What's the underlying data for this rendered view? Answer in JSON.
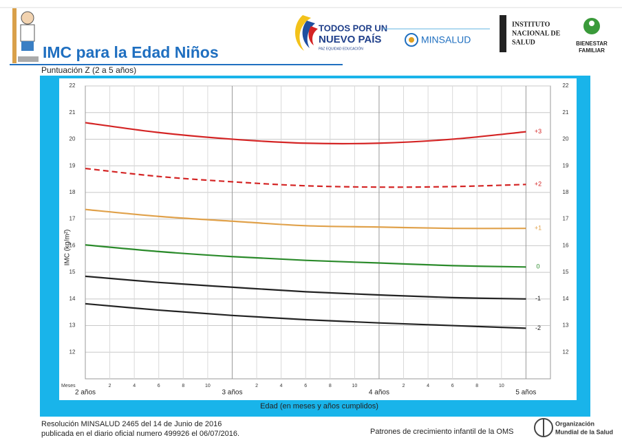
{
  "header": {
    "title": "IMC para la Edad Niños",
    "logo_1_line_1": "TODOS POR UN",
    "logo_1_line_2": "NUEVO PAÍS",
    "logo_1_line_3": "PAZ  EQUIDAD  EDUCACIÓN",
    "logo_2": "MINSALUD",
    "logo_3_line_1": "INSTITUTO",
    "logo_3_line_2": "NACIONAL DE",
    "logo_3_line_3": "SALUD",
    "logo_4_line_1": "BIENESTAR",
    "logo_4_line_2": "FAMILIAR"
  },
  "chart_data": {
    "type": "line",
    "subtitle": "Puntuación Z (2 a 5 años)",
    "y_label": "IMC (kg/m²)",
    "x_label": "Edad (en meses y años cumplidos)",
    "x_unit_label": "Meses",
    "x": [
      24,
      30,
      36,
      42,
      48,
      54,
      60
    ],
    "series": [
      {
        "name": "+3",
        "color": "#d42424",
        "dashed": false,
        "values": [
          20.62,
          20.25,
          20.0,
          19.85,
          19.85,
          20.0,
          20.28
        ]
      },
      {
        "name": "+2",
        "color": "#d42424",
        "dashed": true,
        "values": [
          18.9,
          18.6,
          18.4,
          18.25,
          18.2,
          18.22,
          18.3
        ]
      },
      {
        "name": "+1",
        "color": "#e0a14a",
        "dashed": false,
        "values": [
          17.36,
          17.1,
          16.92,
          16.75,
          16.7,
          16.65,
          16.65
        ]
      },
      {
        "name": "0",
        "color": "#2a8a2a",
        "dashed": false,
        "values": [
          16.03,
          15.78,
          15.59,
          15.45,
          15.35,
          15.25,
          15.2
        ]
      },
      {
        "name": "-1",
        "color": "#222222",
        "dashed": false,
        "values": [
          14.85,
          14.62,
          14.44,
          14.27,
          14.15,
          14.05,
          14.0
        ]
      },
      {
        "name": "-2",
        "color": "#222222",
        "dashed": false,
        "values": [
          13.82,
          13.58,
          13.38,
          13.22,
          13.1,
          13.0,
          12.9
        ]
      }
    ],
    "xlim": [
      24,
      62
    ],
    "xticks": [
      {
        "value": 24,
        "label": "2 años"
      },
      {
        "value": 36,
        "label": "3 años"
      },
      {
        "value": 48,
        "label": "4 años"
      },
      {
        "value": 60,
        "label": "5 años"
      }
    ],
    "x_month_ticks": [
      {
        "value": 26,
        "label": "2"
      },
      {
        "value": 28,
        "label": "4"
      },
      {
        "value": 30,
        "label": "6"
      },
      {
        "value": 32,
        "label": "8"
      },
      {
        "value": 34,
        "label": "10"
      },
      {
        "value": 38,
        "label": "2"
      },
      {
        "value": 40,
        "label": "4"
      },
      {
        "value": 42,
        "label": "6"
      },
      {
        "value": 44,
        "label": "8"
      },
      {
        "value": 46,
        "label": "10"
      },
      {
        "value": 50,
        "label": "2"
      },
      {
        "value": 52,
        "label": "4"
      },
      {
        "value": 54,
        "label": "6"
      },
      {
        "value": 56,
        "label": "8"
      },
      {
        "value": 58,
        "label": "10"
      }
    ],
    "ylim": [
      11,
      22
    ],
    "yticks": [
      12,
      13,
      14,
      15,
      16,
      17,
      18,
      19,
      20,
      21,
      22
    ],
    "grid": true
  },
  "footer": {
    "line_1": "Resolución MINSALUD 2465 del 14 de Junio de 2016",
    "line_2": "publicada en el diario oficial numero 499926 el 06/07/2016.",
    "source": "Patrones de crecimiento infantil de la OMS",
    "org_line_1": "Organización",
    "org_line_2": "Mundial de la Salud"
  }
}
